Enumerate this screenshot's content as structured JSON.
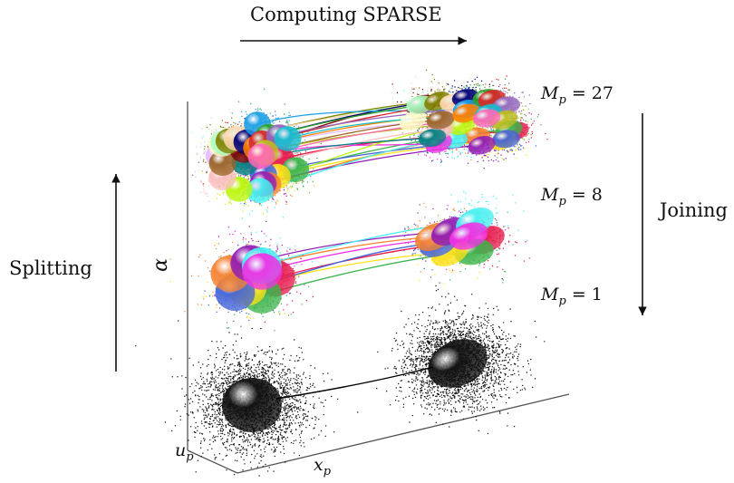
{
  "labels": {
    "top_arrow": "Computing SPARSE",
    "left_arrow": "Splitting",
    "right_arrow": "Joining",
    "axis_vertical": "α",
    "axis_depth_main": "u",
    "axis_depth_sub": "p",
    "axis_horizontal_main": "x",
    "axis_horizontal_sub": "p"
  },
  "levels": [
    {
      "name_main": "M",
      "name_sub": "p",
      "equals": "= 27",
      "count": 27
    },
    {
      "name_main": "M",
      "name_sub": "p",
      "equals": "= 8",
      "count": 8
    },
    {
      "name_main": "M",
      "name_sub": "p",
      "equals": "= 1",
      "count": 1
    }
  ],
  "colors": {
    "axis": "#555555",
    "arrow": "#111111",
    "base_cluster": "#111111",
    "palette": [
      "#e6194b",
      "#3cb44b",
      "#ffe119",
      "#4363d8",
      "#f58231",
      "#911eb4",
      "#46f0f0",
      "#f032e6",
      "#bcf60c",
      "#fabebe",
      "#008080",
      "#e6beff",
      "#9a6324",
      "#fffac8",
      "#800000",
      "#aaffc3",
      "#808000",
      "#ffd8b1",
      "#000075",
      "#1ea0e6",
      "#ff7f00",
      "#2ca02c",
      "#d62728",
      "#9467bd",
      "#17becf",
      "#bcbd22",
      "#ff69b4"
    ]
  }
}
